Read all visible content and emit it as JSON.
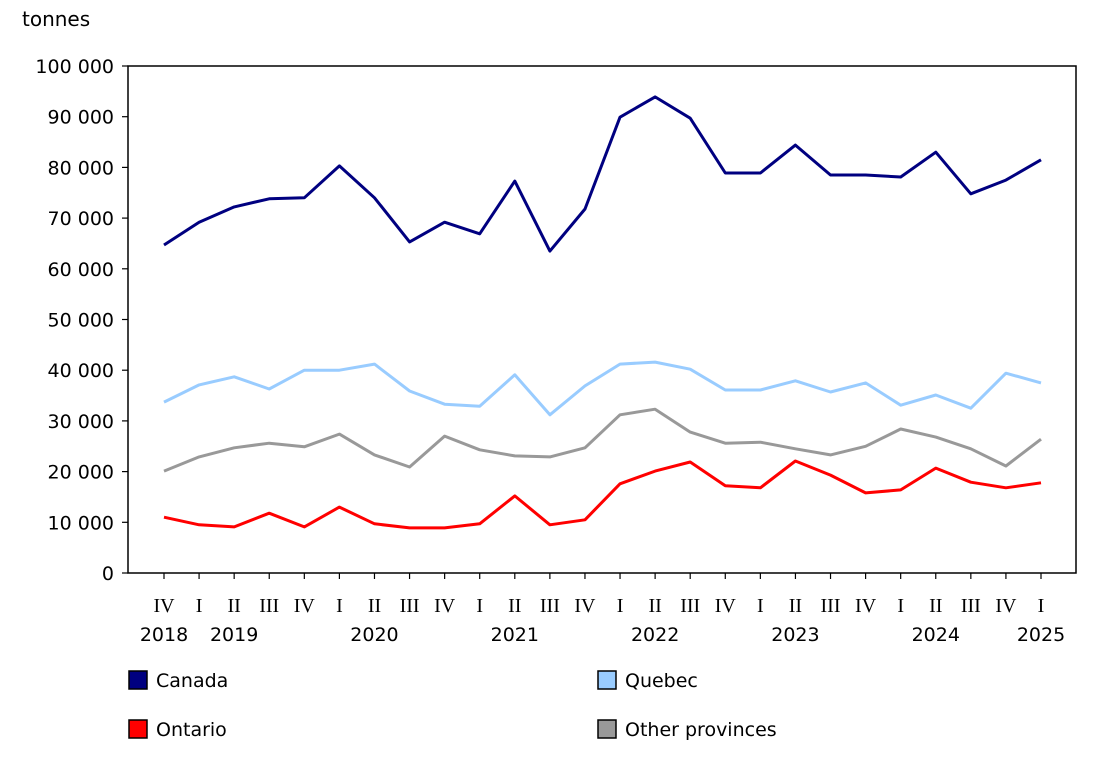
{
  "chart_data": {
    "type": "line",
    "ylabel": "tonnes",
    "ylim": [
      0,
      100000
    ],
    "yticks": [
      0,
      10000,
      20000,
      30000,
      40000,
      50000,
      60000,
      70000,
      80000,
      90000,
      100000
    ],
    "ytick_labels": [
      "0",
      "10 000",
      "20 000",
      "30 000",
      "40 000",
      "50 000",
      "60 000",
      "70 000",
      "80 000",
      "90 000",
      "100 000"
    ],
    "grid": false,
    "legend_placement": "bottom",
    "quarter_labels": [
      "IV",
      "I",
      "II",
      "III",
      "IV",
      "I",
      "II",
      "III",
      "IV",
      "I",
      "II",
      "III",
      "IV",
      "I",
      "II",
      "III",
      "IV",
      "I",
      "II",
      "III",
      "IV",
      "I",
      "II",
      "III",
      "IV",
      "I"
    ],
    "year_labels": [
      {
        "index": 0,
        "label": "2018"
      },
      {
        "index": 2,
        "label": "2019"
      },
      {
        "index": 6,
        "label": "2020"
      },
      {
        "index": 10,
        "label": "2021"
      },
      {
        "index": 14,
        "label": "2022"
      },
      {
        "index": 18,
        "label": "2023"
      },
      {
        "index": 22,
        "label": "2024"
      },
      {
        "index": 25,
        "label": "2025"
      }
    ],
    "series": [
      {
        "name": "Canada",
        "color": "#000080",
        "values": [
          64700,
          69200,
          72200,
          73800,
          74000,
          80300,
          74000,
          65300,
          69200,
          66900,
          77300,
          63500,
          71800,
          89900,
          93900,
          89700,
          78900,
          78900,
          84400,
          78500,
          78500,
          78100,
          83000,
          74800,
          77500,
          81500
        ]
      },
      {
        "name": "Quebec",
        "color": "#99ccff",
        "values": [
          33700,
          37100,
          38700,
          36300,
          40000,
          40000,
          41200,
          35900,
          33300,
          32900,
          39100,
          31200,
          36900,
          41200,
          41600,
          40200,
          36100,
          36100,
          37900,
          35700,
          37500,
          33100,
          35100,
          32500,
          39400,
          37500
        ]
      },
      {
        "name": "Ontario",
        "color": "#ff0000",
        "values": [
          11000,
          9500,
          9100,
          11800,
          9100,
          13000,
          9700,
          8900,
          8900,
          9700,
          15200,
          9500,
          10500,
          17600,
          20100,
          21900,
          17200,
          16800,
          22100,
          19300,
          15800,
          16400,
          20700,
          17900,
          16800,
          17800
        ]
      },
      {
        "name": "Other provinces",
        "color": "#999999",
        "values": [
          20100,
          22900,
          24700,
          25600,
          24900,
          27400,
          23300,
          20900,
          27000,
          24300,
          23100,
          22900,
          24700,
          31200,
          32300,
          27800,
          25600,
          25800,
          24500,
          23300,
          25000,
          28400,
          26800,
          24500,
          21100,
          26400
        ]
      }
    ]
  }
}
